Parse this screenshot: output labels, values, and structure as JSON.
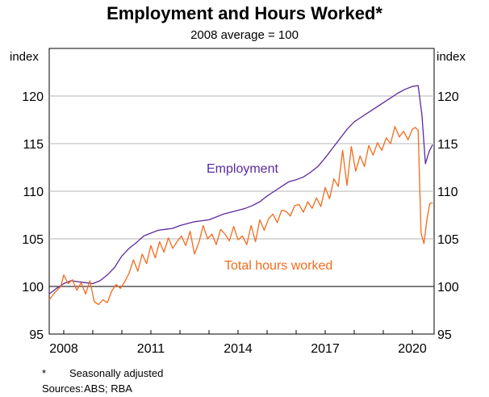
{
  "chart_data": {
    "type": "line",
    "title": "Employment and Hours Worked*",
    "subtitle": "2008 average = 100",
    "y_unit_left": "index",
    "y_unit_right": "index",
    "ylim": [
      95,
      125
    ],
    "yticks": [
      95,
      100,
      105,
      110,
      115,
      120
    ],
    "xlim": [
      2007.5,
      2020.75
    ],
    "xticks": [
      2008,
      2011,
      2014,
      2017,
      2020
    ],
    "grid": true,
    "colors": {
      "employment": "#5b2a9e",
      "hours": "#f26b1d",
      "grid": "#b5b5b5"
    },
    "series": [
      {
        "name": "Employment",
        "key": "employment",
        "x": [
          2007.5,
          2007.75,
          2008.0,
          2008.25,
          2008.5,
          2008.75,
          2009.0,
          2009.25,
          2009.5,
          2009.75,
          2010.0,
          2010.25,
          2010.5,
          2010.75,
          2011.0,
          2011.25,
          2011.5,
          2011.75,
          2012.0,
          2012.25,
          2012.5,
          2012.75,
          2013.0,
          2013.25,
          2013.5,
          2013.75,
          2014.0,
          2014.25,
          2014.5,
          2014.75,
          2015.0,
          2015.25,
          2015.5,
          2015.75,
          2016.0,
          2016.25,
          2016.5,
          2016.75,
          2017.0,
          2017.25,
          2017.5,
          2017.75,
          2018.0,
          2018.25,
          2018.5,
          2018.75,
          2019.0,
          2019.25,
          2019.5,
          2019.75,
          2020.0,
          2020.2,
          2020.33,
          2020.45,
          2020.58,
          2020.7
        ],
        "values": [
          99.2,
          99.8,
          100.3,
          100.6,
          100.5,
          100.4,
          100.3,
          100.6,
          101.2,
          102.0,
          103.2,
          104.0,
          104.6,
          105.3,
          105.6,
          105.9,
          106.0,
          106.1,
          106.4,
          106.6,
          106.8,
          106.9,
          107.0,
          107.3,
          107.6,
          107.8,
          108.0,
          108.2,
          108.5,
          108.9,
          109.5,
          110.0,
          110.5,
          111.0,
          111.2,
          111.5,
          112.0,
          112.6,
          113.5,
          114.5,
          115.5,
          116.5,
          117.3,
          117.8,
          118.3,
          118.8,
          119.3,
          119.8,
          120.3,
          120.7,
          121.0,
          121.1,
          118.0,
          112.9,
          114.2,
          114.9
        ]
      },
      {
        "name": "Total hours worked",
        "key": "hours",
        "x": [
          2007.5,
          2007.7,
          2007.9,
          2008.0,
          2008.15,
          2008.3,
          2008.45,
          2008.6,
          2008.75,
          2008.9,
          2009.05,
          2009.2,
          2009.35,
          2009.5,
          2009.65,
          2009.8,
          2009.95,
          2010.1,
          2010.25,
          2010.4,
          2010.55,
          2010.7,
          2010.85,
          2011.0,
          2011.15,
          2011.3,
          2011.45,
          2011.6,
          2011.75,
          2011.9,
          2012.05,
          2012.2,
          2012.35,
          2012.5,
          2012.65,
          2012.8,
          2012.95,
          2013.1,
          2013.25,
          2013.4,
          2013.55,
          2013.7,
          2013.85,
          2014.0,
          2014.15,
          2014.3,
          2014.45,
          2014.6,
          2014.75,
          2014.9,
          2015.05,
          2015.2,
          2015.35,
          2015.5,
          2015.65,
          2015.8,
          2015.95,
          2016.1,
          2016.25,
          2016.4,
          2016.55,
          2016.7,
          2016.85,
          2017.0,
          2017.15,
          2017.3,
          2017.45,
          2017.6,
          2017.75,
          2017.9,
          2018.05,
          2018.2,
          2018.35,
          2018.5,
          2018.65,
          2018.8,
          2018.95,
          2019.1,
          2019.25,
          2019.4,
          2019.55,
          2019.7,
          2019.85,
          2020.0,
          2020.1,
          2020.2,
          2020.3,
          2020.4,
          2020.5,
          2020.6,
          2020.7
        ],
        "values": [
          98.6,
          99.4,
          100.0,
          101.2,
          100.3,
          100.7,
          99.6,
          100.4,
          99.2,
          100.6,
          98.4,
          98.1,
          98.6,
          98.3,
          99.5,
          100.2,
          99.8,
          100.5,
          101.4,
          102.8,
          101.6,
          103.4,
          102.4,
          104.3,
          103.0,
          104.7,
          103.6,
          105.1,
          104.0,
          104.7,
          105.3,
          104.3,
          105.8,
          103.4,
          104.6,
          106.4,
          105.0,
          105.5,
          104.4,
          106.0,
          105.5,
          104.8,
          106.3,
          104.9,
          105.3,
          104.4,
          106.4,
          104.7,
          107.0,
          105.9,
          107.1,
          107.6,
          106.7,
          108.0,
          107.9,
          107.4,
          108.5,
          108.6,
          107.8,
          108.9,
          108.2,
          109.3,
          108.4,
          110.4,
          109.2,
          111.3,
          110.5,
          114.3,
          110.6,
          114.7,
          112.1,
          113.7,
          112.6,
          114.8,
          113.8,
          115.1,
          114.3,
          115.6,
          115.0,
          116.8,
          115.7,
          116.3,
          115.4,
          116.5,
          116.7,
          116.4,
          105.6,
          104.5,
          107.0,
          108.7,
          108.8
        ]
      }
    ]
  },
  "series_labels": {
    "employment": "Employment",
    "hours": "Total hours worked"
  },
  "notes": {
    "star_key": "*",
    "star_text": "Seasonally adjusted",
    "sources_key": "Sources:",
    "sources_text": "ABS; RBA"
  }
}
